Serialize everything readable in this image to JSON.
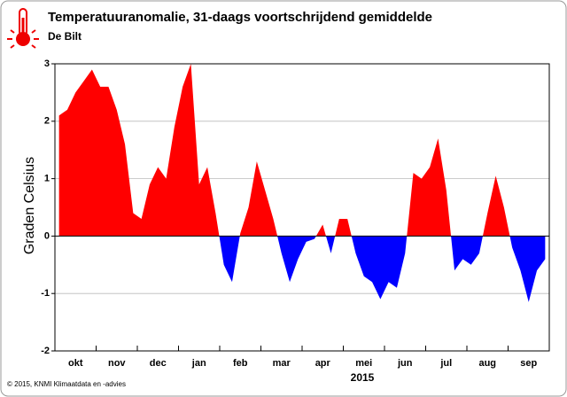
{
  "chart_data": {
    "type": "area",
    "title": "Temperatuuranomalie, 31-daags voortschrijdend gemiddelde",
    "subtitle": "De Bilt",
    "ylabel": "Graden Celsius",
    "xlabel": "2015",
    "footnote": "© 2015, KNMI Klimaatdata en -advies",
    "categories": [
      null,
      null,
      "okt",
      null,
      null,
      null,
      null,
      "nov",
      null,
      null,
      null,
      null,
      "dec",
      null,
      null,
      null,
      null,
      "jan",
      null,
      null,
      null,
      null,
      "feb",
      null,
      null,
      null,
      null,
      "mar",
      null,
      null,
      null,
      null,
      "apr",
      null,
      null,
      null,
      null,
      "mei",
      null,
      null,
      null,
      null,
      "jun",
      null,
      null,
      null,
      null,
      "jul",
      null,
      null,
      null,
      null,
      "aug",
      null,
      null,
      null,
      null,
      "sep",
      null,
      null
    ],
    "values": [
      2.1,
      2.2,
      2.5,
      2.7,
      2.9,
      2.6,
      2.6,
      2.2,
      1.6,
      0.4,
      0.3,
      0.9,
      1.2,
      1.0,
      1.9,
      2.6,
      3.0,
      0.9,
      1.2,
      0.4,
      -0.5,
      -0.8,
      0.05,
      0.5,
      1.3,
      0.8,
      0.3,
      -0.3,
      -0.8,
      -0.4,
      -0.1,
      -0.05,
      0.2,
      -0.3,
      0.3,
      0.3,
      -0.3,
      -0.7,
      -0.8,
      -1.1,
      -0.8,
      -0.9,
      -0.3,
      1.1,
      1.0,
      1.2,
      1.7,
      0.8,
      -0.6,
      -0.4,
      -0.5,
      -0.3,
      0.4,
      1.05,
      0.5,
      -0.2,
      -0.6,
      -1.15,
      -0.6,
      -0.4
    ],
    "color": "#ff0000",
    "negative_color": "#0000ff",
    "ylim": [
      -2,
      3
    ],
    "yticks": [
      -2,
      -1,
      0,
      1,
      2,
      3
    ],
    "grid": true
  }
}
